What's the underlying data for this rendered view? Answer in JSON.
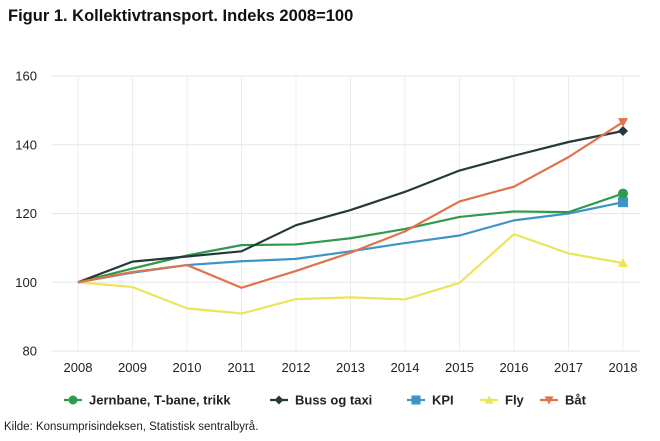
{
  "figure": {
    "title": "Figur 1. Kollektivtransport. Indeks 2008=100",
    "source": "Kilde: Konsumprisindeksen, Statistisk sentralbyrå."
  },
  "chart_data": {
    "type": "line",
    "title": "Figur 1. Kollektivtransport. Indeks 2008=100",
    "xlabel": "",
    "ylabel": "",
    "x": [
      2008,
      2009,
      2010,
      2011,
      2012,
      2013,
      2014,
      2015,
      2016,
      2017,
      2018
    ],
    "ylim": [
      80,
      160
    ],
    "yticks": [
      80,
      100,
      120,
      140,
      160
    ],
    "grid": true,
    "legend_position": "bottom",
    "series": [
      {
        "name": "Jernbane, T-bane, trikk",
        "color": "#2e9a4c",
        "marker": "circle",
        "values": [
          100,
          104,
          107.8,
          110.8,
          111,
          112.8,
          115.5,
          119,
          120.6,
          120.4,
          125.8
        ]
      },
      {
        "name": "Buss og taxi",
        "color": "#253a38",
        "marker": "diamond",
        "values": [
          100,
          106,
          107.5,
          109,
          116.6,
          121,
          126.3,
          132.5,
          136.8,
          140.8,
          144
        ]
      },
      {
        "name": "KPI",
        "color": "#3e94c8",
        "marker": "square",
        "values": [
          100,
          102.8,
          105,
          106.1,
          106.8,
          109,
          111.4,
          113.6,
          118,
          120,
          123.3
        ]
      },
      {
        "name": "Fly",
        "color": "#ece55a",
        "marker": "triangle-up",
        "values": [
          100,
          98.6,
          92.4,
          90.9,
          95.1,
          95.6,
          95,
          99.8,
          114,
          108.4,
          105.6
        ]
      },
      {
        "name": "Båt",
        "color": "#e0734a",
        "marker": "triangle-down",
        "values": [
          100,
          103,
          105,
          98.4,
          103.3,
          108.6,
          114.8,
          123.5,
          127.8,
          136.4,
          146.6
        ]
      }
    ]
  }
}
